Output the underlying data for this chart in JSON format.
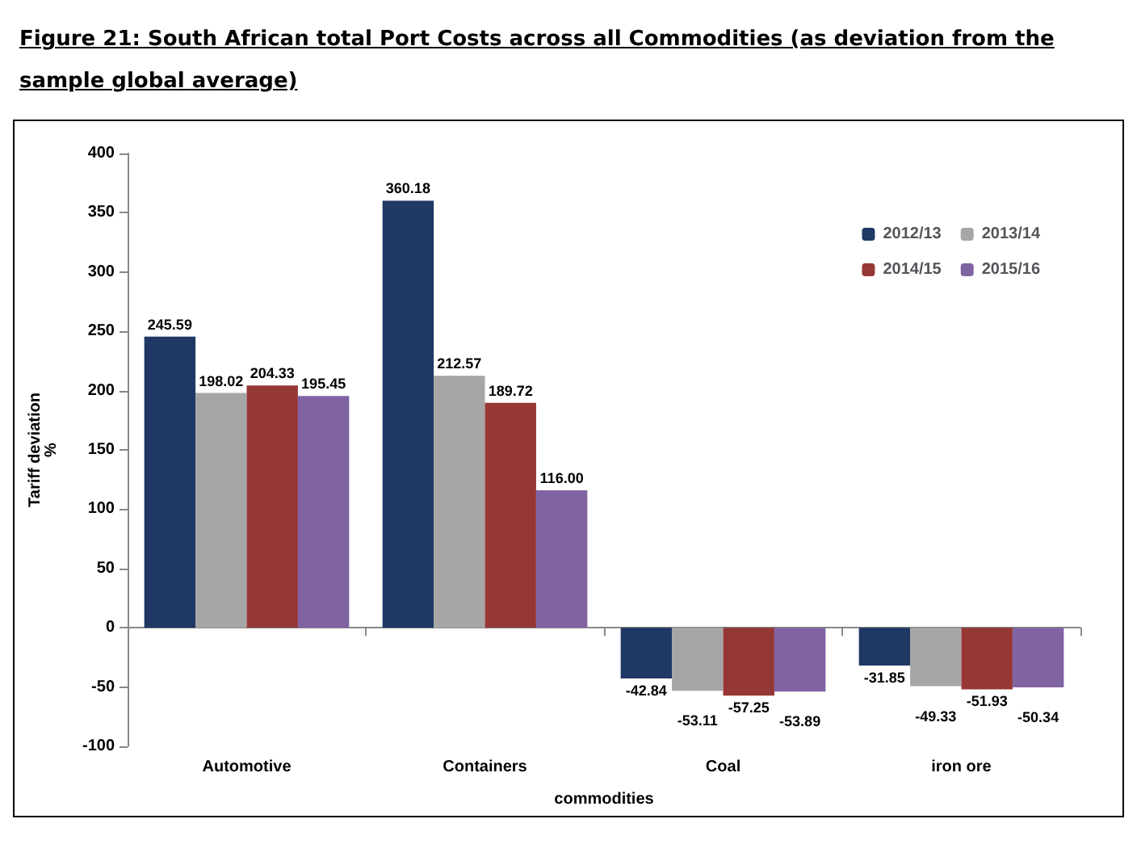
{
  "chart_data": {
    "type": "bar",
    "title": "Figure 21: South African total Port Costs across all Commodities (as deviation from the sample global average)",
    "xlabel": "commodities",
    "ylabel": "Tariff deviation %",
    "categories": [
      "Automotive",
      "Containers",
      "Coal",
      "iron ore"
    ],
    "series": [
      {
        "name": "2012/13",
        "color": "#1f3864",
        "values": [
          245.59,
          360.18,
          -42.84,
          -31.85
        ],
        "value_labels": [
          "245.59",
          "360.18",
          "-42.84",
          "-31.85"
        ]
      },
      {
        "name": "2013/14",
        "color": "#a6a6a6",
        "values": [
          198.02,
          212.57,
          -53.11,
          -49.33
        ],
        "value_labels": [
          "198.02",
          "212.57",
          "-53.11",
          "-49.33"
        ]
      },
      {
        "name": "2014/15",
        "color": "#953735",
        "values": [
          204.33,
          189.72,
          -57.25,
          -51.93
        ],
        "value_labels": [
          "204.33",
          "189.72",
          "-57.25",
          "-51.93"
        ]
      },
      {
        "name": "2015/16",
        "color": "#8064a2",
        "values": [
          195.45,
          116.0,
          -53.89,
          -50.34
        ],
        "value_labels": [
          "195.45",
          "116.00",
          "-53.89",
          "-50.34"
        ]
      }
    ],
    "ylim": [
      -100,
      400
    ],
    "yticks": [
      -100,
      -50,
      0,
      50,
      100,
      150,
      200,
      250,
      300,
      350,
      400
    ],
    "legend": "top right"
  }
}
